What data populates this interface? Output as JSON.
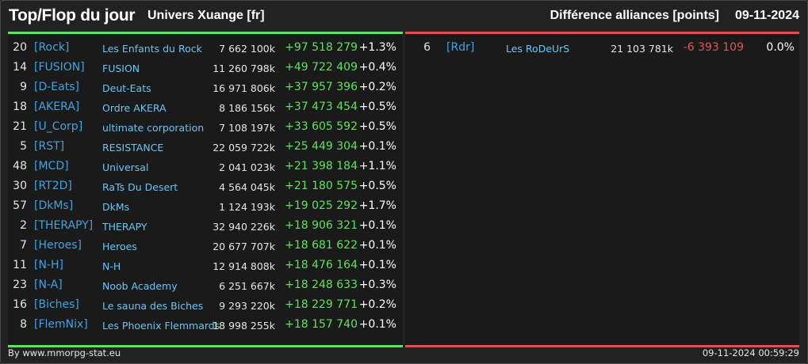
{
  "header": {
    "title": "Top/Flop du jour",
    "universe": "Univers Xuange [fr]",
    "diff_label": "Différence alliances [points]",
    "date": "09-11-2024"
  },
  "colors": {
    "positive": "#5ee35e",
    "negative": "#e05555",
    "tag": "#43a3e0",
    "name": "#6cc4f2"
  },
  "top": [
    {
      "rank": "20",
      "tag": "[Rock]",
      "name": "Les Enfants du Rock",
      "points": "7 662 100k",
      "delta": "+97 518 279",
      "pct": "+1.3%"
    },
    {
      "rank": "14",
      "tag": "[FUSION]",
      "name": "FUSION",
      "points": "11 260 798k",
      "delta": "+49 722 409",
      "pct": "+0.4%"
    },
    {
      "rank": "9",
      "tag": "[D-Eats]",
      "name": "Deut-Eats",
      "points": "16 971 806k",
      "delta": "+37 957 396",
      "pct": "+0.2%"
    },
    {
      "rank": "18",
      "tag": "[AKERA]",
      "name": "Ordre AKERA",
      "points": "8 186 156k",
      "delta": "+37 473 454",
      "pct": "+0.5%"
    },
    {
      "rank": "21",
      "tag": "[U_Corp]",
      "name": "ultimate corporation",
      "points": "7 108 197k",
      "delta": "+33 605 592",
      "pct": "+0.5%"
    },
    {
      "rank": "5",
      "tag": "[RST]",
      "name": "RESISTANCE",
      "points": "22 059 722k",
      "delta": "+25 449 304",
      "pct": "+0.1%"
    },
    {
      "rank": "48",
      "tag": "[MCD]",
      "name": "Universal",
      "points": "2 041 023k",
      "delta": "+21 398 184",
      "pct": "+1.1%"
    },
    {
      "rank": "30",
      "tag": "[RT2D]",
      "name": "RaTs Du Desert",
      "points": "4 564 045k",
      "delta": "+21 180 575",
      "pct": "+0.5%"
    },
    {
      "rank": "57",
      "tag": "[DkMs]",
      "name": "DkMs",
      "points": "1 124 193k",
      "delta": "+19 025 292",
      "pct": "+1.7%"
    },
    {
      "rank": "2",
      "tag": "[THERAPY]",
      "name": "THERAPY",
      "points": "32 940 226k",
      "delta": "+18 906 321",
      "pct": "+0.1%"
    },
    {
      "rank": "7",
      "tag": "[Heroes]",
      "name": "Heroes",
      "points": "20 677 707k",
      "delta": "+18 681 622",
      "pct": "+0.1%"
    },
    {
      "rank": "11",
      "tag": "[N-H]",
      "name": "N-H",
      "points": "12 914 808k",
      "delta": "+18 476 164",
      "pct": "+0.1%"
    },
    {
      "rank": "23",
      "tag": "[N-A]",
      "name": "Noob Academy",
      "points": "6 251 667k",
      "delta": "+18 248 633",
      "pct": "+0.3%"
    },
    {
      "rank": "16",
      "tag": "[Biches]",
      "name": "Le sauna des Biches",
      "points": "9 293 220k",
      "delta": "+18 229 771",
      "pct": "+0.2%"
    },
    {
      "rank": "8",
      "tag": "[FlemNix]",
      "name": "Les Phoenix Flemmards",
      "points": "18 998 255k",
      "delta": "+18 157 740",
      "pct": "+0.1%"
    }
  ],
  "flop": [
    {
      "rank": "6",
      "tag": "[Rdr]",
      "name": "Les RoDeUrS",
      "points": "21 103 781k",
      "delta": "-6 393 109",
      "pct": "0.0%"
    }
  ],
  "footer": {
    "source": "By www.mmorpg-stat.eu",
    "timestamp": "09-11-2024 00:59:29"
  }
}
